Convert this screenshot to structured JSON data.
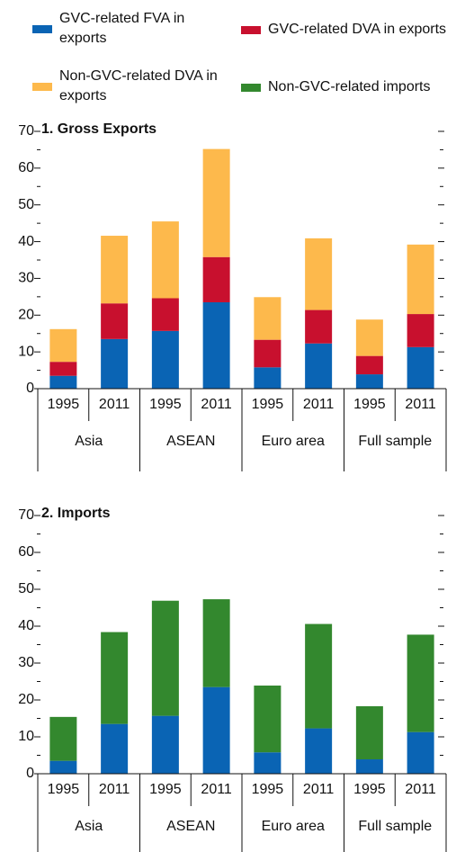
{
  "chart_data": [
    {
      "type": "stacked-bar",
      "title": "1. Gross Exports",
      "categories": [
        "1995",
        "2011",
        "1995",
        "2011",
        "1995",
        "2011",
        "1995",
        "2011"
      ],
      "groups": [
        "Asia",
        "ASEAN",
        "Euro area",
        "Full sample"
      ],
      "series": [
        {
          "name": "GVC-related FVA in exports",
          "color": "#0a64b4",
          "values": [
            3.5,
            13.5,
            15.7,
            23.5,
            5.8,
            12.3,
            3.9,
            11.3
          ]
        },
        {
          "name": "GVC-related DVA in exports",
          "color": "#c8102e",
          "values": [
            3.8,
            9.7,
            8.9,
            12.3,
            7.5,
            9.1,
            5.0,
            9.0
          ]
        },
        {
          "name": "Non-GVC-related DVA in exports",
          "color": "#fdb94c",
          "values": [
            8.9,
            18.4,
            20.9,
            29.4,
            11.6,
            19.5,
            9.9,
            18.9
          ]
        }
      ],
      "ylim": [
        0,
        70
      ],
      "yticks": [
        0,
        10,
        20,
        30,
        40,
        50,
        60,
        70
      ]
    },
    {
      "type": "stacked-bar",
      "title": "2. Imports",
      "categories": [
        "1995",
        "2011",
        "1995",
        "2011",
        "1995",
        "2011",
        "1995",
        "2011"
      ],
      "groups": [
        "Asia",
        "ASEAN",
        "Euro area",
        "Full sample"
      ],
      "series": [
        {
          "name": "GVC-related FVA in exports",
          "color": "#0a64b4",
          "values": [
            3.5,
            13.5,
            15.7,
            23.5,
            5.8,
            12.3,
            3.9,
            11.3
          ]
        },
        {
          "name": "Non-GVC-related imports",
          "color": "#33882e",
          "values": [
            11.9,
            24.9,
            31.2,
            23.8,
            18.1,
            28.3,
            14.4,
            26.4
          ]
        }
      ],
      "ylim": [
        0,
        70
      ],
      "yticks": [
        0,
        10,
        20,
        30,
        40,
        50,
        60,
        70
      ]
    }
  ]
}
